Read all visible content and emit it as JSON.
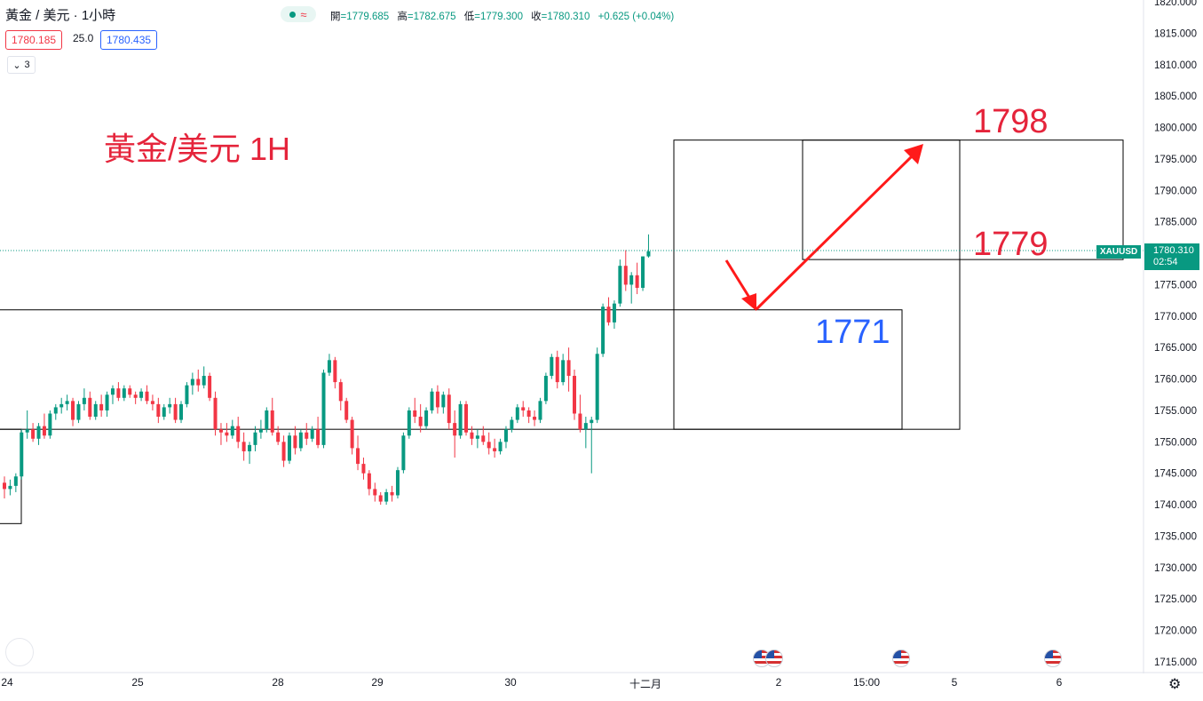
{
  "header": {
    "symbol": "黃金 / 美元 · 1小時",
    "ohlc_labels": {
      "open": "開",
      "high": "高",
      "low": "低",
      "close": "收"
    },
    "ohlc": {
      "open": "=1779.685",
      "high": "=1782.675",
      "low": "=1779.300",
      "close": "=1780.310",
      "change": "+0.625 (+0.04%)"
    },
    "sell_price": "1780.185",
    "spread": "25.0",
    "buy_price": "1780.435",
    "indicators_count": "3",
    "collapse_icon": "chevron-down-icon",
    "market_pill_icon": "wave-icon"
  },
  "annotations": {
    "title": "黃金/美元 1H",
    "level_1798": "1798",
    "level_1779": "1779",
    "level_1771": "1771"
  },
  "price_scale": {
    "symbol_tag": "XAUUSD",
    "last_price": "1780.310",
    "countdown": "02:54"
  },
  "x_axis": [
    "24",
    "25",
    "28",
    "29",
    "30",
    "十二月",
    "2",
    "15:00",
    "5",
    "6"
  ],
  "colors": {
    "up": "#089981",
    "down": "#f23645",
    "annotation_red": "#e5243b",
    "annotation_blue": "#2962ff"
  },
  "chart_data": {
    "type": "candlestick",
    "symbol": "XAUUSD",
    "interval": "1H",
    "ylim": [
      1712,
      1821
    ],
    "y_ticks": [
      1715,
      1720,
      1725,
      1730,
      1735,
      1740,
      1745,
      1750,
      1755,
      1760,
      1765,
      1770,
      1775,
      1780,
      1785,
      1790,
      1795,
      1800,
      1805,
      1810,
      1815,
      1820
    ],
    "last_price": 1780.31,
    "candles": [
      [
        1743.5,
        1744.5,
        1741.0,
        1742.5
      ],
      [
        1742.5,
        1744.0,
        1741.5,
        1743.0
      ],
      [
        1743.0,
        1745.0,
        1742.0,
        1744.5
      ],
      [
        1744.5,
        1752.0,
        1744.0,
        1751.5
      ],
      [
        1751.5,
        1755.0,
        1750.5,
        1752.0
      ],
      [
        1752.0,
        1753.0,
        1750.0,
        1750.5
      ],
      [
        1750.5,
        1753.0,
        1749.5,
        1752.5
      ],
      [
        1752.5,
        1754.5,
        1750.5,
        1751.0
      ],
      [
        1751.0,
        1755.0,
        1750.5,
        1754.5
      ],
      [
        1754.5,
        1756.0,
        1753.5,
        1755.5
      ],
      [
        1755.5,
        1757.0,
        1754.5,
        1756.0
      ],
      [
        1756.0,
        1757.5,
        1755.0,
        1756.5
      ],
      [
        1756.5,
        1757.0,
        1752.5,
        1753.5
      ],
      [
        1753.5,
        1756.5,
        1753.0,
        1756.0
      ],
      [
        1756.0,
        1758.5,
        1755.0,
        1757.0
      ],
      [
        1757.0,
        1758.0,
        1753.5,
        1754.0
      ],
      [
        1754.0,
        1756.5,
        1753.5,
        1756.0
      ],
      [
        1756.0,
        1757.5,
        1754.0,
        1755.0
      ],
      [
        1755.0,
        1758.0,
        1754.0,
        1757.5
      ],
      [
        1757.5,
        1759.0,
        1756.0,
        1758.5
      ],
      [
        1758.5,
        1759.5,
        1756.5,
        1757.0
      ],
      [
        1757.0,
        1759.0,
        1756.5,
        1758.5
      ],
      [
        1758.5,
        1759.0,
        1757.0,
        1757.5
      ],
      [
        1757.5,
        1758.0,
        1756.0,
        1757.0
      ],
      [
        1757.0,
        1758.5,
        1756.5,
        1758.0
      ],
      [
        1758.0,
        1759.0,
        1756.0,
        1756.5
      ],
      [
        1756.5,
        1757.5,
        1755.0,
        1756.0
      ],
      [
        1756.0,
        1757.0,
        1753.0,
        1754.0
      ],
      [
        1754.0,
        1756.0,
        1753.5,
        1755.5
      ],
      [
        1755.5,
        1757.0,
        1754.5,
        1756.0
      ],
      [
        1756.0,
        1757.0,
        1753.0,
        1753.5
      ],
      [
        1753.5,
        1756.5,
        1753.0,
        1756.0
      ],
      [
        1756.0,
        1759.5,
        1755.5,
        1759.0
      ],
      [
        1759.0,
        1761.0,
        1757.5,
        1760.0
      ],
      [
        1760.0,
        1761.5,
        1758.0,
        1759.0
      ],
      [
        1759.0,
        1762.0,
        1758.5,
        1760.5
      ],
      [
        1760.5,
        1761.0,
        1756.5,
        1757.0
      ],
      [
        1757.0,
        1758.0,
        1751.0,
        1752.0
      ],
      [
        1752.0,
        1753.0,
        1749.5,
        1751.5
      ],
      [
        1751.5,
        1753.0,
        1750.0,
        1751.0
      ],
      [
        1751.0,
        1753.5,
        1750.5,
        1752.5
      ],
      [
        1752.5,
        1754.0,
        1749.0,
        1750.0
      ],
      [
        1750.0,
        1751.5,
        1747.0,
        1748.5
      ],
      [
        1748.5,
        1750.0,
        1746.5,
        1749.5
      ],
      [
        1749.5,
        1752.5,
        1748.5,
        1751.5
      ],
      [
        1751.5,
        1753.5,
        1750.5,
        1752.0
      ],
      [
        1752.0,
        1755.5,
        1751.5,
        1755.0
      ],
      [
        1755.0,
        1757.0,
        1751.0,
        1751.5
      ],
      [
        1751.5,
        1752.5,
        1749.5,
        1750.0
      ],
      [
        1750.0,
        1751.0,
        1746.0,
        1747.0
      ],
      [
        1747.0,
        1751.5,
        1746.5,
        1751.0
      ],
      [
        1751.0,
        1752.5,
        1748.0,
        1749.0
      ],
      [
        1749.0,
        1752.0,
        1748.5,
        1751.5
      ],
      [
        1751.5,
        1753.0,
        1749.5,
        1750.5
      ],
      [
        1750.5,
        1752.5,
        1750.0,
        1752.0
      ],
      [
        1752.0,
        1754.0,
        1749.0,
        1749.5
      ],
      [
        1749.5,
        1761.5,
        1749.0,
        1761.0
      ],
      [
        1761.0,
        1764.0,
        1760.5,
        1763.0
      ],
      [
        1763.0,
        1763.5,
        1758.5,
        1759.5
      ],
      [
        1759.5,
        1760.0,
        1755.0,
        1756.5
      ],
      [
        1756.5,
        1757.0,
        1753.0,
        1753.5
      ],
      [
        1753.5,
        1754.0,
        1748.0,
        1749.0
      ],
      [
        1749.0,
        1751.0,
        1745.5,
        1746.5
      ],
      [
        1746.5,
        1747.5,
        1744.0,
        1745.0
      ],
      [
        1745.0,
        1745.5,
        1741.5,
        1742.5
      ],
      [
        1742.5,
        1743.5,
        1740.5,
        1741.5
      ],
      [
        1741.5,
        1742.0,
        1740.0,
        1740.5
      ],
      [
        1740.5,
        1742.5,
        1740.0,
        1742.0
      ],
      [
        1742.0,
        1743.0,
        1740.5,
        1741.5
      ],
      [
        1741.5,
        1746.0,
        1741.0,
        1745.5
      ],
      [
        1745.5,
        1751.5,
        1745.0,
        1751.0
      ],
      [
        1751.0,
        1755.5,
        1750.5,
        1755.0
      ],
      [
        1755.0,
        1757.0,
        1753.0,
        1754.0
      ],
      [
        1754.0,
        1756.0,
        1751.5,
        1752.5
      ],
      [
        1752.5,
        1755.5,
        1752.0,
        1755.0
      ],
      [
        1755.0,
        1758.5,
        1754.5,
        1758.0
      ],
      [
        1758.0,
        1759.0,
        1754.5,
        1755.5
      ],
      [
        1755.5,
        1758.0,
        1754.5,
        1757.5
      ],
      [
        1757.5,
        1758.5,
        1752.0,
        1753.0
      ],
      [
        1753.0,
        1755.0,
        1747.5,
        1751.0
      ],
      [
        1751.0,
        1756.5,
        1750.5,
        1756.0
      ],
      [
        1756.0,
        1756.5,
        1751.0,
        1751.5
      ],
      [
        1751.5,
        1752.5,
        1749.5,
        1750.5
      ],
      [
        1750.5,
        1752.0,
        1749.0,
        1751.0
      ],
      [
        1751.0,
        1752.5,
        1749.5,
        1750.0
      ],
      [
        1750.0,
        1751.5,
        1748.0,
        1749.0
      ],
      [
        1749.0,
        1750.5,
        1747.5,
        1748.5
      ],
      [
        1748.5,
        1750.5,
        1748.0,
        1750.0
      ],
      [
        1750.0,
        1752.5,
        1749.0,
        1752.0
      ],
      [
        1752.0,
        1754.0,
        1751.5,
        1753.5
      ],
      [
        1753.5,
        1756.0,
        1753.0,
        1755.5
      ],
      [
        1755.5,
        1756.5,
        1754.0,
        1755.0
      ],
      [
        1755.0,
        1755.5,
        1753.0,
        1754.0
      ],
      [
        1754.0,
        1755.0,
        1752.5,
        1753.5
      ],
      [
        1753.5,
        1757.0,
        1753.0,
        1756.5
      ],
      [
        1756.5,
        1761.0,
        1756.0,
        1760.5
      ],
      [
        1760.5,
        1764.0,
        1760.0,
        1763.5
      ],
      [
        1763.5,
        1764.5,
        1758.5,
        1759.5
      ],
      [
        1759.5,
        1764.0,
        1759.0,
        1763.0
      ],
      [
        1763.0,
        1765.0,
        1758.0,
        1760.5
      ],
      [
        1760.5,
        1761.5,
        1753.5,
        1754.5
      ],
      [
        1754.5,
        1757.5,
        1751.5,
        1752.0
      ],
      [
        1752.0,
        1754.0,
        1749.0,
        1753.0
      ],
      [
        1753.0,
        1754.0,
        1745.0,
        1753.5
      ],
      [
        1753.5,
        1765.0,
        1753.0,
        1764.0
      ],
      [
        1764.0,
        1772.0,
        1763.5,
        1771.5
      ],
      [
        1771.5,
        1773.0,
        1768.5,
        1769.0
      ],
      [
        1769.0,
        1772.5,
        1768.0,
        1772.0
      ],
      [
        1772.0,
        1779.0,
        1771.5,
        1778.0
      ],
      [
        1778.0,
        1780.5,
        1774.0,
        1775.0
      ],
      [
        1775.0,
        1777.0,
        1772.0,
        1776.5
      ],
      [
        1776.5,
        1778.5,
        1773.5,
        1774.5
      ],
      [
        1774.5,
        1779.5,
        1774.0,
        1779.5
      ],
      [
        1779.5,
        1783.0,
        1779.3,
        1780.31
      ]
    ],
    "levels": [
      1798,
      1779,
      1771
    ],
    "boxes": [
      {
        "price_top": 1771,
        "price_bottom": 1752
      },
      {
        "price_top": 1798,
        "price_bottom": 1752
      },
      {
        "price_top": 1798,
        "price_bottom": 1779
      }
    ]
  }
}
